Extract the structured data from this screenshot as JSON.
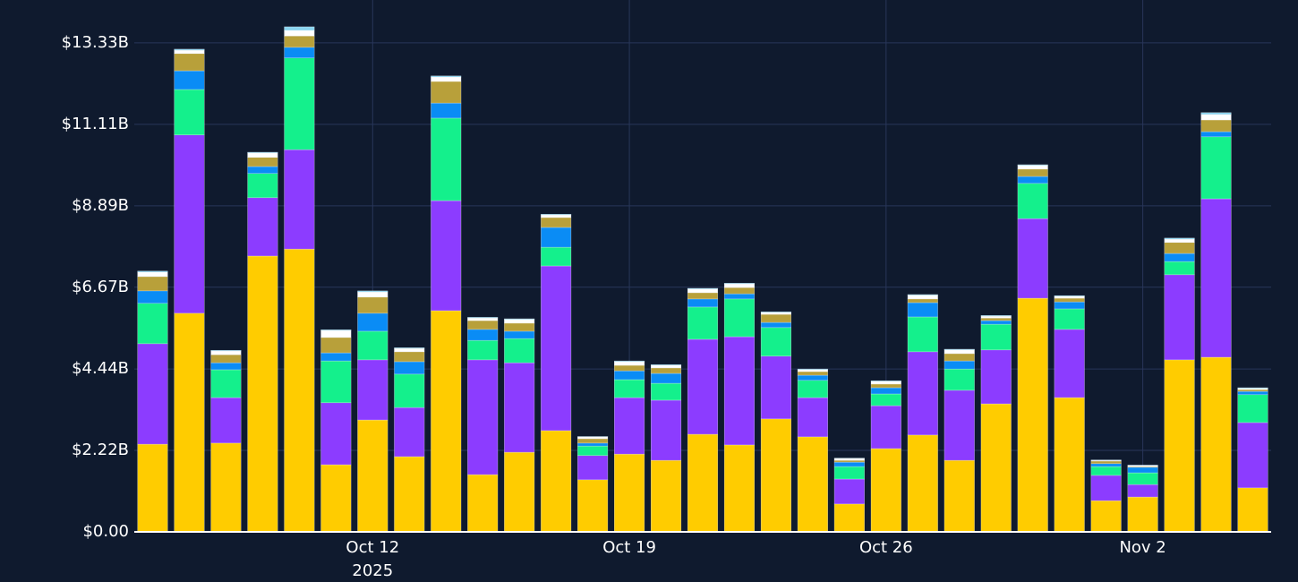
{
  "chart_data": {
    "type": "stacked_bar",
    "x": [
      "2025-10-06",
      "2025-10-07",
      "2025-10-08",
      "2025-10-09",
      "2025-10-10",
      "2025-10-11",
      "2025-10-12",
      "2025-10-13",
      "2025-10-14",
      "2025-10-15",
      "2025-10-16",
      "2025-10-17",
      "2025-10-18",
      "2025-10-19",
      "2025-10-20",
      "2025-10-21",
      "2025-10-22",
      "2025-10-23",
      "2025-10-24",
      "2025-10-25",
      "2025-10-26",
      "2025-10-27",
      "2025-10-28",
      "2025-10-29",
      "2025-10-30",
      "2025-10-31",
      "2025-11-01",
      "2025-11-02",
      "2025-11-03",
      "2025-11-04",
      "2025-11-05"
    ],
    "series": [
      {
        "color": "#ffcc00",
        "values": [
          2.39,
          5.96,
          2.42,
          7.52,
          7.71,
          1.83,
          3.05,
          2.05,
          6.03,
          1.56,
          2.17,
          2.76,
          1.42,
          2.12,
          1.95,
          2.66,
          2.37,
          3.08,
          2.59,
          0.76,
          2.27,
          2.64,
          1.95,
          3.49,
          6.37,
          3.66,
          0.85,
          0.95,
          4.69,
          4.76,
          1.2
        ]
      },
      {
        "color": "#8c3cff",
        "values": [
          2.74,
          4.86,
          1.24,
          1.59,
          2.71,
          1.69,
          1.64,
          1.34,
          3.0,
          3.13,
          2.44,
          4.49,
          0.66,
          1.54,
          1.64,
          2.59,
          2.95,
          1.71,
          1.07,
          0.68,
          1.17,
          2.27,
          1.91,
          1.47,
          2.17,
          1.86,
          0.69,
          0.34,
          2.32,
          4.32,
          1.78
        ]
      },
      {
        "color": "#14f08c",
        "values": [
          1.1,
          1.24,
          0.76,
          0.66,
          2.5,
          1.14,
          0.78,
          0.91,
          2.25,
          0.53,
          0.66,
          0.51,
          0.26,
          0.49,
          0.46,
          0.88,
          1.03,
          0.78,
          0.47,
          0.34,
          0.32,
          0.95,
          0.58,
          0.7,
          0.96,
          0.56,
          0.24,
          0.32,
          0.36,
          1.69,
          0.76
        ]
      },
      {
        "color": "#0a8cf5",
        "values": [
          0.34,
          0.51,
          0.19,
          0.19,
          0.29,
          0.22,
          0.49,
          0.34,
          0.41,
          0.3,
          0.2,
          0.54,
          0.08,
          0.24,
          0.27,
          0.22,
          0.14,
          0.14,
          0.14,
          0.12,
          0.17,
          0.39,
          0.22,
          0.1,
          0.19,
          0.19,
          0.08,
          0.15,
          0.22,
          0.14,
          0.09
        ]
      },
      {
        "color": "#b8a03a",
        "values": [
          0.39,
          0.47,
          0.22,
          0.25,
          0.31,
          0.42,
          0.44,
          0.27,
          0.59,
          0.24,
          0.22,
          0.27,
          0.12,
          0.15,
          0.15,
          0.17,
          0.17,
          0.22,
          0.1,
          0.05,
          0.1,
          0.1,
          0.2,
          0.07,
          0.2,
          0.1,
          0.07,
          0.02,
          0.3,
          0.32,
          0.05
        ]
      },
      {
        "color": "#ffffff",
        "values": [
          0.12,
          0.09,
          0.1,
          0.12,
          0.15,
          0.19,
          0.14,
          0.09,
          0.12,
          0.07,
          0.1,
          0.07,
          0.05,
          0.1,
          0.07,
          0.1,
          0.1,
          0.05,
          0.05,
          0.05,
          0.07,
          0.1,
          0.1,
          0.05,
          0.1,
          0.05,
          0.02,
          0.03,
          0.09,
          0.15,
          0.03
        ]
      },
      {
        "color": "#8ad4f0",
        "values": [
          0.03,
          0.03,
          0.02,
          0.02,
          0.1,
          0.02,
          0.03,
          0.02,
          0.03,
          0.02,
          0.02,
          0.02,
          0.01,
          0.02,
          0.02,
          0.02,
          0.02,
          0.02,
          0.02,
          0.01,
          0.02,
          0.02,
          0.02,
          0.02,
          0.02,
          0.02,
          0.01,
          0.01,
          0.03,
          0.05,
          0.02
        ]
      }
    ],
    "ylim": [
      0,
      14.5
    ],
    "yticks": [
      {
        "value": 0,
        "label": "$0.00"
      },
      {
        "value": 2.22,
        "label": "$2.22B"
      },
      {
        "value": 4.44,
        "label": "$4.44B"
      },
      {
        "value": 6.67,
        "label": "$6.67B"
      },
      {
        "value": 8.89,
        "label": "$8.89B"
      },
      {
        "value": 11.11,
        "label": "$11.11B"
      },
      {
        "value": 13.33,
        "label": "$13.33B"
      }
    ],
    "xticks": [
      {
        "value": "2025-10-12",
        "label": "Oct 12"
      },
      {
        "value": "2025-10-19",
        "label": "Oct 19"
      },
      {
        "value": "2025-10-26",
        "label": "Oct 26"
      },
      {
        "value": "2025-11-02",
        "label": "Nov 2"
      }
    ],
    "x_year": "2025",
    "grid": true
  }
}
